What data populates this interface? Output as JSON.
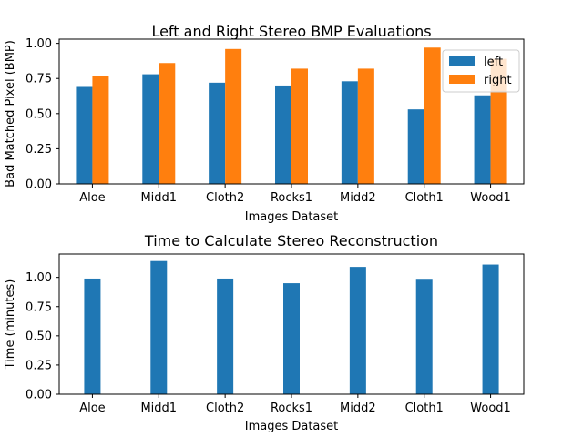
{
  "chart_data": [
    {
      "type": "bar",
      "title": "Left and Right Stereo BMP Evaluations",
      "xlabel": "Images Dataset",
      "ylabel": "Bad Matched Pixel (BMP)",
      "categories": [
        "Aloe",
        "Midd1",
        "Cloth2",
        "Rocks1",
        "Midd2",
        "Cloth1",
        "Wood1"
      ],
      "series": [
        {
          "name": "left",
          "color": "#1f77b4",
          "values": [
            0.69,
            0.78,
            0.72,
            0.7,
            0.73,
            0.53,
            0.63
          ]
        },
        {
          "name": "right",
          "color": "#ff7f0e",
          "values": [
            0.77,
            0.86,
            0.96,
            0.82,
            0.82,
            0.97,
            0.89
          ]
        }
      ],
      "ylim": [
        0,
        1.03
      ],
      "yticks": [
        "0.00",
        "0.25",
        "0.50",
        "0.75",
        "1.00"
      ],
      "legend": "top-right",
      "grid": false
    },
    {
      "type": "bar",
      "title": "Time to Calculate Stereo Reconstruction",
      "xlabel": "Images Dataset",
      "ylabel": "Time (minutes)",
      "categories": [
        "Aloe",
        "Midd1",
        "Cloth2",
        "Rocks1",
        "Midd2",
        "Cloth1",
        "Wood1"
      ],
      "series": [
        {
          "color": "#1f77b4",
          "values": [
            0.99,
            1.14,
            0.99,
            0.95,
            1.09,
            0.98,
            1.11
          ]
        }
      ],
      "ylim": [
        0,
        1.2
      ],
      "yticks": [
        "0.00",
        "0.25",
        "0.50",
        "0.75",
        "1.00"
      ],
      "grid": false
    }
  ]
}
